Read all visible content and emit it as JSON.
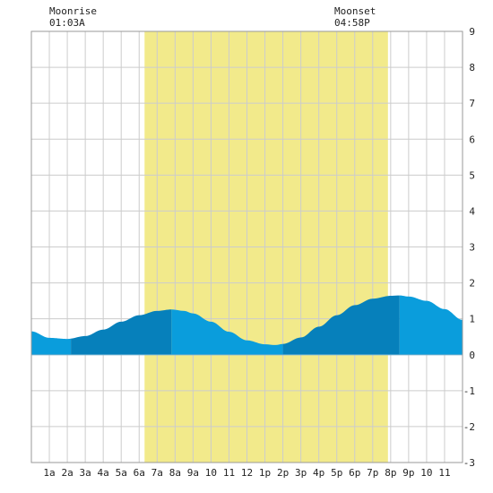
{
  "moon": {
    "rise_label": "Moonrise",
    "rise_time": "01:03A",
    "set_label": "Moonset",
    "set_time": "04:58P"
  },
  "chart_data": {
    "type": "area",
    "xlabel": "",
    "ylabel": "",
    "x_range": [
      0,
      24
    ],
    "ylim": [
      -3,
      9
    ],
    "y_ticks": [
      9,
      8,
      7,
      6,
      5,
      4,
      3,
      2,
      1,
      0,
      -1,
      -2,
      -3
    ],
    "x_tick_labels": [
      "1a",
      "2a",
      "3a",
      "4a",
      "5a",
      "6a",
      "7a",
      "8a",
      "9a",
      "10",
      "11",
      "12",
      "1p",
      "2p",
      "3p",
      "4p",
      "5p",
      "6p",
      "7p",
      "8p",
      "9p",
      "10",
      "11"
    ],
    "grid": true,
    "daylight": {
      "start_hour": 6.3,
      "end_hour": 19.85,
      "color": "#f2ea8b"
    },
    "series": [
      {
        "x": [
          0,
          1,
          2,
          3,
          4,
          5,
          6,
          7,
          7.8,
          8.5,
          9,
          10,
          11,
          12,
          13,
          13.6,
          14,
          15,
          16,
          17,
          18,
          19,
          20,
          20.5,
          21,
          22,
          23,
          24
        ],
        "y": [
          0.65,
          0.47,
          0.44,
          0.52,
          0.7,
          0.92,
          1.1,
          1.22,
          1.26,
          1.22,
          1.15,
          0.92,
          0.64,
          0.4,
          0.29,
          0.27,
          0.3,
          0.48,
          0.78,
          1.1,
          1.38,
          1.56,
          1.64,
          1.65,
          1.62,
          1.5,
          1.27,
          0.97
        ]
      }
    ],
    "bands": [
      {
        "from": 0,
        "to": 2.2,
        "shade": "light"
      },
      {
        "from": 2.2,
        "to": 7.8,
        "shade": "dark"
      },
      {
        "from": 7.8,
        "to": 14.0,
        "shade": "light"
      },
      {
        "from": 14.0,
        "to": 20.5,
        "shade": "dark"
      },
      {
        "from": 20.5,
        "to": 24,
        "shade": "light"
      }
    ],
    "colors": {
      "light": "#0a9ddc",
      "dark": "#0680bb",
      "grid": "#cccccc",
      "frame": "#999999"
    }
  }
}
